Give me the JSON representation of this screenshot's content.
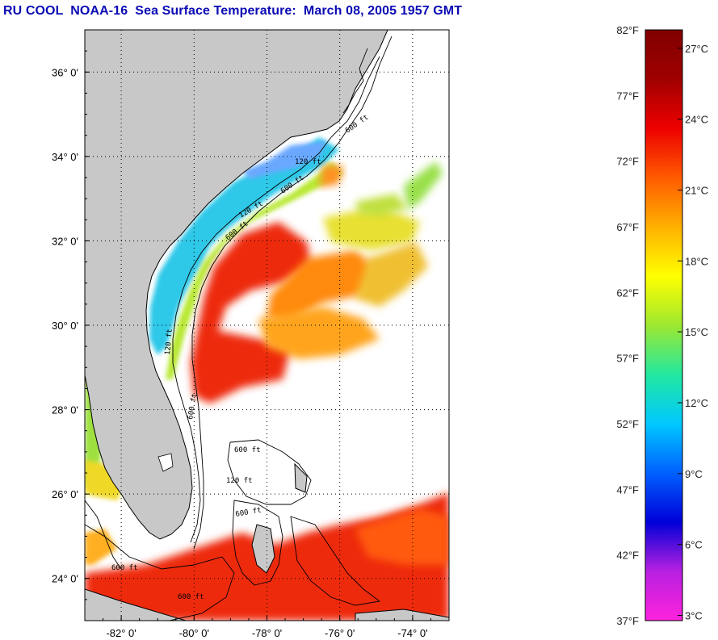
{
  "title": "RU COOL  NOAA-16  Sea Surface Temperature:  March 08, 2005 1957 GMT",
  "map": {
    "lat_labels": [
      "36° 0'",
      "34° 0'",
      "32° 0'",
      "30° 0'",
      "28° 0'",
      "26° 0'",
      "24° 0'"
    ],
    "lon_labels": [
      "-82° 0'",
      "-80° 0'",
      "-78° 0'",
      "-76° 0'",
      "-74° 0'"
    ],
    "lat_range": [
      23,
      37
    ],
    "lon_range": [
      -83,
      -73
    ],
    "land_color": "#c8c8c8",
    "contour_labels": [
      "600 ft",
      "120 ft",
      "600 ft",
      "120 ft",
      "600 ft",
      "600 ft",
      "120 ft",
      "600 ft",
      "120 ft",
      "600 ft",
      "600 ft",
      "600 ft"
    ]
  },
  "colorbar": {
    "fahrenheit": [
      "82°F",
      "77°F",
      "72°F",
      "67°F",
      "62°F",
      "57°F",
      "52°F",
      "47°F",
      "42°F",
      "37°F"
    ],
    "celsius": [
      "27°C",
      "24°C",
      "21°C",
      "18°C",
      "15°C",
      "12°C",
      "9°C",
      "6°C",
      "3°C"
    ],
    "f_range": [
      37,
      82
    ],
    "colors": [
      "#ff22dd",
      "#b820e0",
      "#0000d8",
      "#0060ff",
      "#00c8ff",
      "#22e8a0",
      "#9ee830",
      "#ffff00",
      "#ffb000",
      "#ff5a00",
      "#ee0000",
      "#a00000",
      "#800000"
    ]
  }
}
